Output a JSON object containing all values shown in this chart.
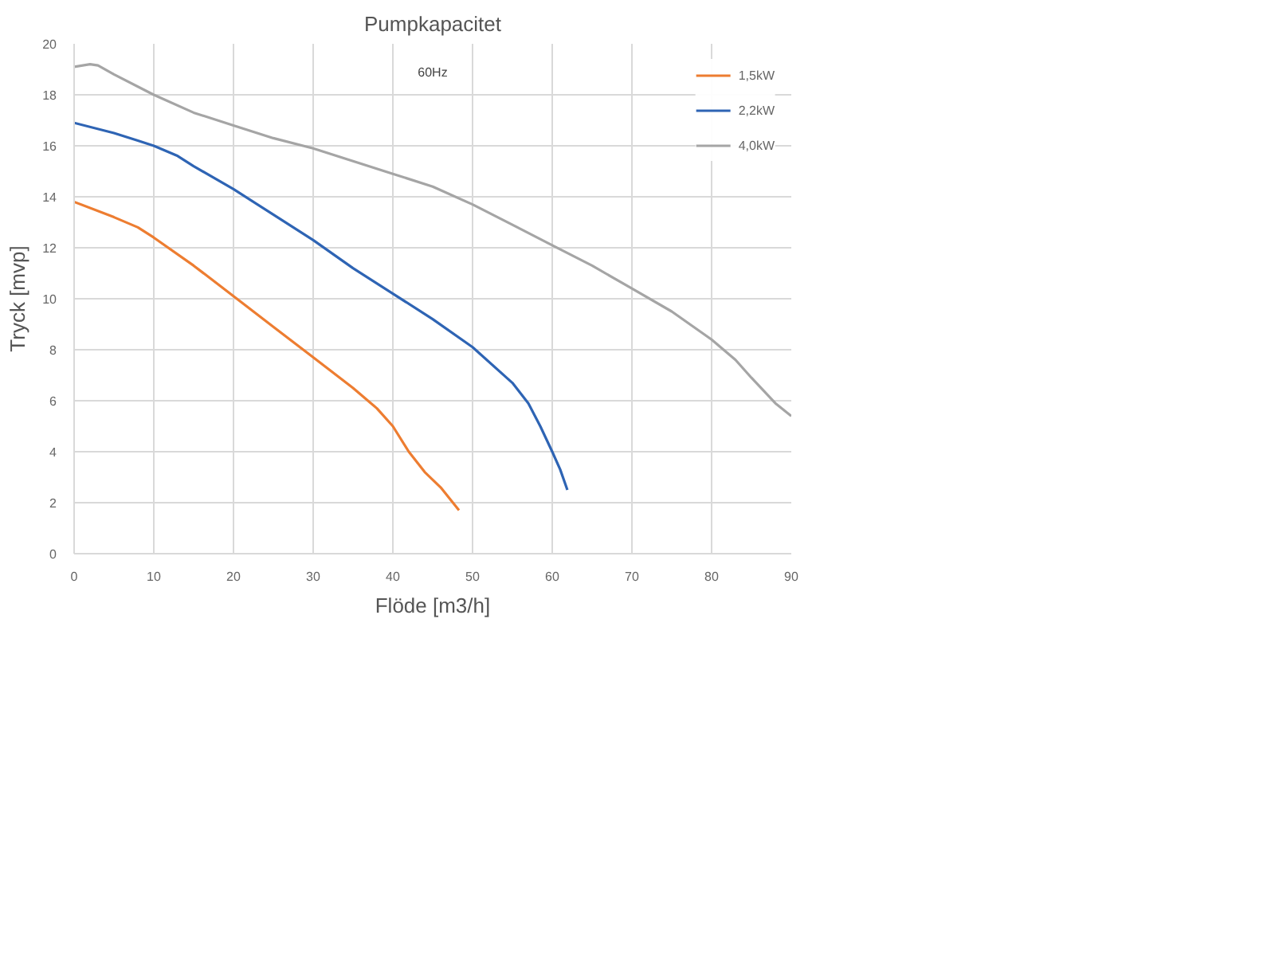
{
  "chart_data": {
    "type": "line",
    "title": "Pumpkapacitet",
    "xlabel": "Flöde [m3/h]",
    "ylabel": "Tryck [mvp]",
    "annotations": [
      "60Hz"
    ],
    "xlim": [
      0,
      90
    ],
    "ylim": [
      0,
      20
    ],
    "xticks": [
      0,
      10,
      20,
      30,
      40,
      50,
      60,
      70,
      80,
      90
    ],
    "yticks": [
      0,
      2,
      4,
      6,
      8,
      10,
      12,
      14,
      16,
      18,
      20
    ],
    "grid": true,
    "legend": "top right",
    "marker": "none",
    "line_style": "solid",
    "series": [
      {
        "name": "1,5kW",
        "color": "#ed7d31",
        "x": [
          0,
          5,
          8,
          10,
          15,
          20,
          25,
          30,
          35,
          38,
          40,
          42,
          44,
          46,
          48.3
        ],
        "values": [
          13.8,
          13.2,
          12.8,
          12.4,
          11.3,
          10.1,
          8.9,
          7.7,
          6.5,
          5.7,
          5.0,
          4.0,
          3.2,
          2.6,
          1.7
        ]
      },
      {
        "name": "2,2kW",
        "color": "#2e64b4",
        "x": [
          0,
          5,
          8,
          10,
          13,
          15,
          20,
          25,
          30,
          35,
          40,
          45,
          50,
          55,
          57,
          58.5,
          60,
          61,
          61.9
        ],
        "values": [
          16.9,
          16.5,
          16.2,
          16.0,
          15.6,
          15.2,
          14.3,
          13.3,
          12.3,
          11.2,
          10.2,
          9.2,
          8.1,
          6.7,
          5.9,
          5.0,
          4.0,
          3.3,
          2.5
        ]
      },
      {
        "name": "4,0kW",
        "color": "#a5a5a5",
        "x": [
          0,
          2,
          3,
          5,
          10,
          15,
          20,
          25,
          30,
          35,
          40,
          45,
          50,
          55,
          60,
          65,
          70,
          75,
          80,
          83,
          85,
          88,
          90
        ],
        "values": [
          19.1,
          19.2,
          19.15,
          18.8,
          18.0,
          17.3,
          16.8,
          16.3,
          15.9,
          15.4,
          14.9,
          14.4,
          13.7,
          12.9,
          12.1,
          11.3,
          10.4,
          9.5,
          8.4,
          7.6,
          6.9,
          5.9,
          5.4
        ]
      }
    ]
  }
}
